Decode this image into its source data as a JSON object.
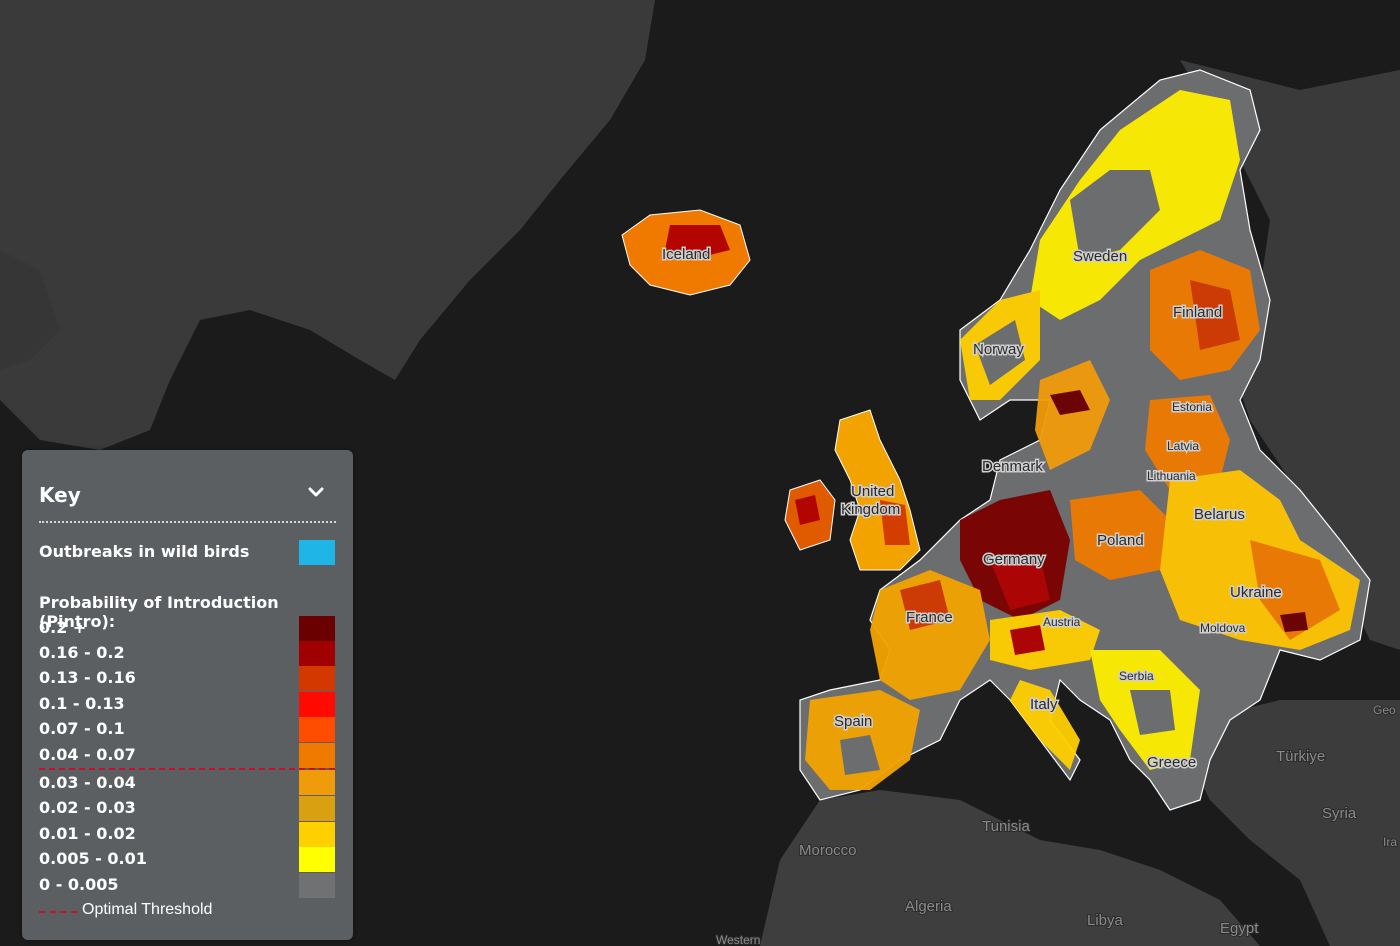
{
  "map": {
    "countries": [
      "Iceland",
      "Sweden",
      "Finland",
      "Norway",
      "Estonia",
      "Latvia",
      "Lithuania",
      "Denmark",
      "United",
      "Kingdom",
      "Belarus",
      "Poland",
      "Germany",
      "Ukraine",
      "France",
      "Austria",
      "Moldova",
      "Serbia",
      "Spain",
      "Italy",
      "Greece",
      "Türkiye",
      "Syria",
      "Tunisia",
      "Morocco",
      "Algeria",
      "Libya",
      "Egypt",
      "Western",
      "Geo",
      "Ira"
    ]
  },
  "legend": {
    "title": "Key",
    "outbreaks_label": "Outbreaks in wild birds",
    "outbreaks_color": "#1fb5e6",
    "probability_title": "Probability of Introduction (Pintro):",
    "classes": [
      {
        "label": "0.2 +",
        "color": "#6b0000"
      },
      {
        "label": "0.16 - 0.2",
        "color": "#a00000"
      },
      {
        "label": "0.13 - 0.16",
        "color": "#d23800"
      },
      {
        "label": "0.1 - 0.13",
        "color": "#ff0a00"
      },
      {
        "label": "0.07 - 0.1",
        "color": "#ff4d00"
      },
      {
        "label": "0.04 - 0.07",
        "color": "#f07a00"
      },
      {
        "label": "0.03 - 0.04",
        "color": "#f09b0a"
      },
      {
        "label": "0.02 - 0.03",
        "color": "#d9a012"
      },
      {
        "label": "0.01 - 0.02",
        "color": "#ffd000"
      },
      {
        "label": "0.005 - 0.01",
        "color": "#ffff00"
      },
      {
        "label": "0 - 0.005",
        "color": "#6f7173"
      }
    ],
    "optimal_threshold_label": "Optimal Threshold"
  }
}
